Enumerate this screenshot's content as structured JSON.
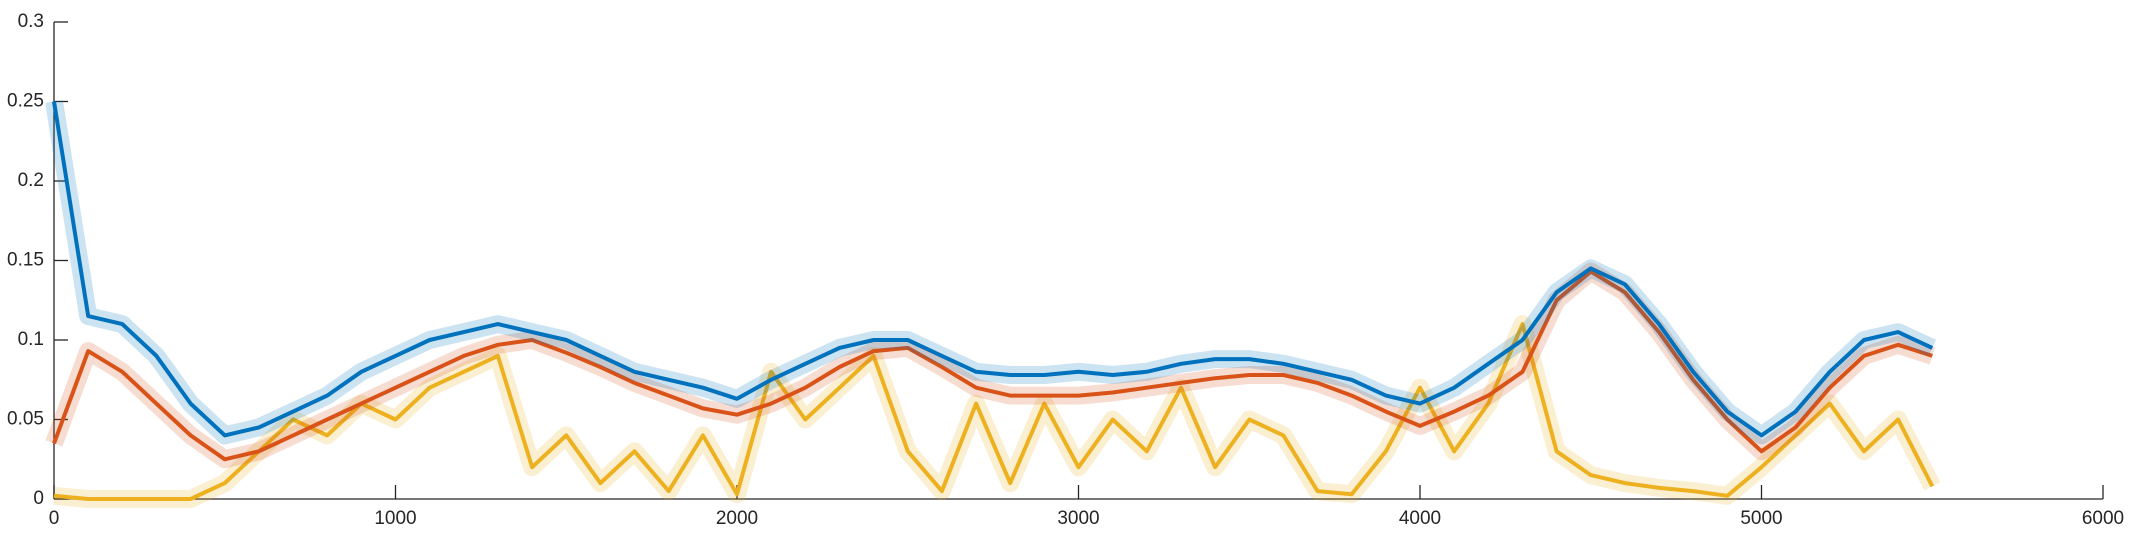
{
  "chart_data": {
    "type": "line",
    "x": [
      0,
      100,
      200,
      300,
      400,
      500,
      600,
      700,
      800,
      900,
      1000,
      1100,
      1200,
      1300,
      1400,
      1500,
      1600,
      1700,
      1800,
      1900,
      2000,
      2100,
      2200,
      2300,
      2400,
      2500,
      2600,
      2700,
      2800,
      2900,
      3000,
      3100,
      3200,
      3300,
      3400,
      3500,
      3600,
      3700,
      3800,
      3900,
      4000,
      4100,
      4200,
      4300,
      4400,
      4500,
      4600,
      4700,
      4800,
      4900,
      5000,
      5100,
      5200,
      5300,
      5400,
      5500
    ],
    "series": [
      {
        "color": "#edb120",
        "values": [
          0.002,
          0,
          0,
          0,
          0,
          0.01,
          0.03,
          0.05,
          0.04,
          0.06,
          0.05,
          0.07,
          0.08,
          0.09,
          0.02,
          0.04,
          0.01,
          0.03,
          0.005,
          0.04,
          0.003,
          0.08,
          0.05,
          0.07,
          0.09,
          0.03,
          0.005,
          0.06,
          0.01,
          0.06,
          0.02,
          0.05,
          0.03,
          0.07,
          0.02,
          0.05,
          0.04,
          0.005,
          0.003,
          0.03,
          0.07,
          0.03,
          0.06,
          0.11,
          0.03,
          0.015,
          0.01,
          0.007,
          0.005,
          0.002,
          0.02,
          0.04,
          0.06,
          0.03,
          0.05,
          0.008
        ]
      },
      {
        "color": "#d95319",
        "values": [
          0.035,
          0.093,
          0.08,
          0.06,
          0.04,
          0.025,
          0.03,
          0.04,
          0.05,
          0.06,
          0.07,
          0.08,
          0.09,
          0.097,
          0.1,
          0.092,
          0.083,
          0.073,
          0.065,
          0.057,
          0.053,
          0.06,
          0.07,
          0.083,
          0.093,
          0.095,
          0.083,
          0.07,
          0.065,
          0.065,
          0.065,
          0.067,
          0.07,
          0.073,
          0.076,
          0.078,
          0.078,
          0.073,
          0.065,
          0.055,
          0.046,
          0.055,
          0.065,
          0.08,
          0.125,
          0.143,
          0.13,
          0.105,
          0.075,
          0.05,
          0.03,
          0.045,
          0.07,
          0.09,
          0.097,
          0.09
        ]
      },
      {
        "color": "#0072bd",
        "values": [
          0.25,
          0.115,
          0.11,
          0.09,
          0.06,
          0.04,
          0.045,
          0.055,
          0.065,
          0.08,
          0.09,
          0.1,
          0.105,
          0.11,
          0.105,
          0.1,
          0.09,
          0.08,
          0.075,
          0.07,
          0.063,
          0.075,
          0.085,
          0.095,
          0.1,
          0.1,
          0.09,
          0.08,
          0.078,
          0.078,
          0.08,
          0.078,
          0.08,
          0.085,
          0.088,
          0.088,
          0.085,
          0.08,
          0.075,
          0.065,
          0.06,
          0.07,
          0.085,
          0.1,
          0.13,
          0.145,
          0.135,
          0.11,
          0.08,
          0.055,
          0.04,
          0.055,
          0.08,
          0.1,
          0.105,
          0.095
        ]
      }
    ],
    "xlim": [
      0,
      6000
    ],
    "xticks": [
      0,
      1000,
      2000,
      3000,
      4000,
      5000,
      6000
    ],
    "ylim": [
      0,
      0.3
    ],
    "yticks": [
      0,
      0.05,
      0.1,
      0.15,
      0.2,
      0.25,
      0.3
    ]
  }
}
